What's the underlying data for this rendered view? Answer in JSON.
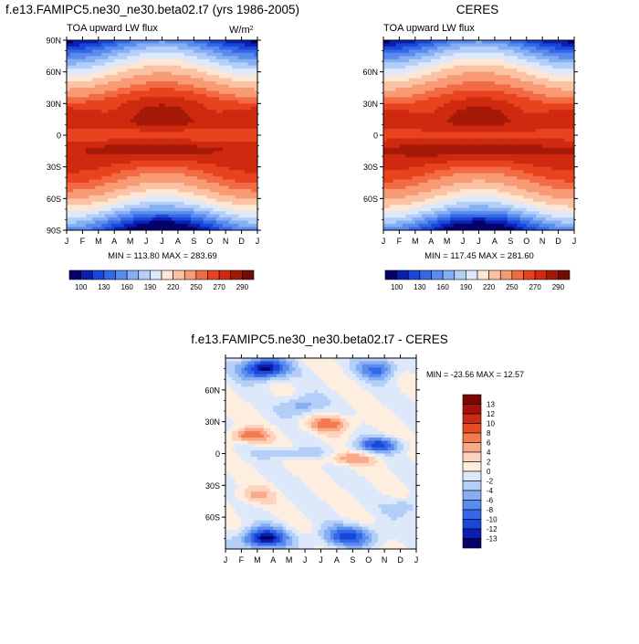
{
  "chart_data": [
    {
      "type": "heatmap",
      "title": "f.e13.FAMIPC5.ne30_ne30.beta02.t7 (yrs 1986-2005)",
      "subtitle_left": "TOA upward LW flux",
      "units_prefix": "W/m",
      "units_sup": "2",
      "x_ticks": [
        "J",
        "F",
        "M",
        "A",
        "M",
        "J",
        "J",
        "A",
        "S",
        "O",
        "N",
        "D",
        "J"
      ],
      "y_ticks": [
        "90N",
        "60N",
        "30N",
        "0",
        "30S",
        "60S",
        "90S"
      ],
      "stats": "MIN = 113.80  MAX = 283.69",
      "colorbar_labels": [
        "100",
        "130",
        "160",
        "190",
        "220",
        "250",
        "270",
        "290"
      ],
      "field": "ann",
      "seed": 0,
      "ylim": [
        -90,
        90
      ]
    },
    {
      "type": "heatmap",
      "title": "CERES",
      "subtitle_left": "TOA upward LW flux",
      "x_ticks": [
        "J",
        "F",
        "M",
        "A",
        "M",
        "J",
        "J",
        "A",
        "S",
        "O",
        "N",
        "D",
        "J"
      ],
      "y_ticks": [
        "60N",
        "30N",
        "0",
        "30S",
        "60S"
      ],
      "stats": "MIN = 117.45  MAX = 281.60",
      "colorbar_labels": [
        "100",
        "130",
        "160",
        "190",
        "220",
        "250",
        "270",
        "290"
      ],
      "field": "ann",
      "seed": 1,
      "ylim": [
        -90,
        90
      ]
    },
    {
      "type": "heatmap",
      "title": "f.e13.FAMIPC5.ne30_ne30.beta02.t7 - CERES",
      "x_ticks": [
        "J",
        "F",
        "M",
        "A",
        "M",
        "J",
        "J",
        "A",
        "S",
        "O",
        "N",
        "D",
        "J"
      ],
      "y_ticks": [
        "60N",
        "30N",
        "0",
        "30S",
        "60S"
      ],
      "stats": "MIN = -23.56  MAX =  12.57",
      "colorbar_labels": [
        "13",
        "12",
        "10",
        "8",
        "6",
        "4",
        "2",
        "0",
        "-2",
        "-4",
        "-6",
        "-8",
        "-10",
        "-12",
        "-13"
      ],
      "field": "diff",
      "seed": 2,
      "ylim": [
        -90,
        90
      ]
    }
  ],
  "colors": {
    "ann_scale": [
      "#05006b",
      "#0a1fb0",
      "#1a47d8",
      "#3568e6",
      "#5a8bee",
      "#86aef3",
      "#b4cff7",
      "#dde9fb",
      "#fde6d4",
      "#fbc3a3",
      "#f89a74",
      "#f26b44",
      "#e8431f",
      "#cf2a10",
      "#a51909",
      "#6f0d04"
    ],
    "diff_scale": [
      "#7a0606",
      "#a5120a",
      "#cc2a12",
      "#e64b22",
      "#f37a4f",
      "#f9a987",
      "#fcd3bd",
      "#fdeedf",
      "#dde9fb",
      "#b4cff7",
      "#86aef3",
      "#5a8bee",
      "#3568e6",
      "#1a47d8",
      "#0a1fb0",
      "#05006b"
    ]
  }
}
